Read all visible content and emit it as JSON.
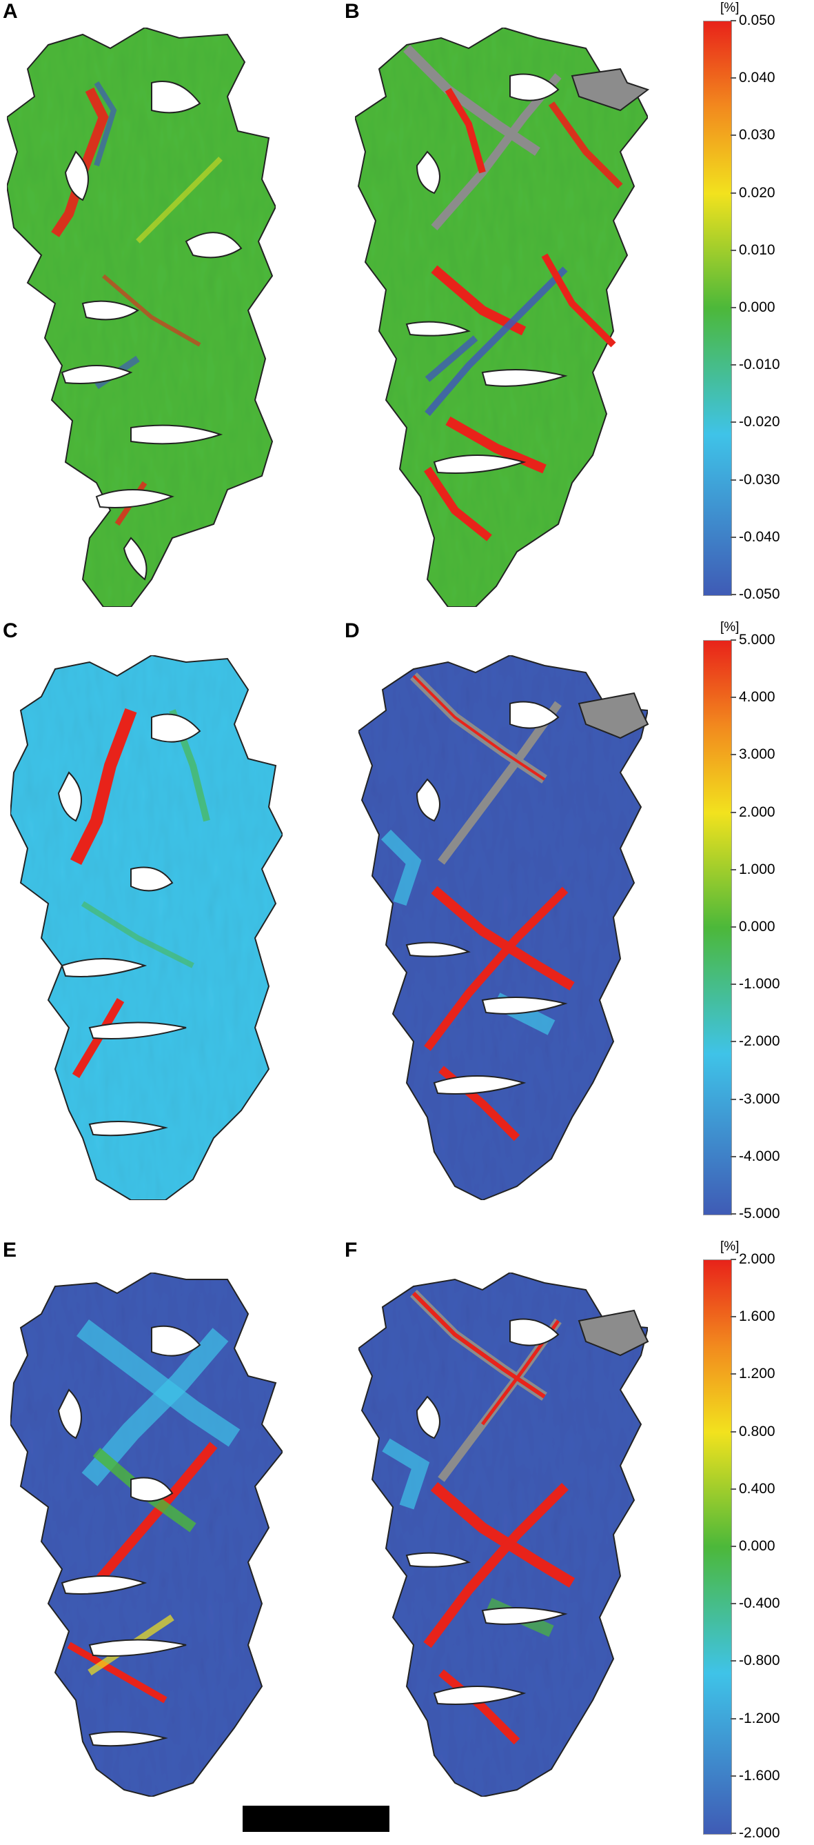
{
  "panels": [
    {
      "letter": "A",
      "field": "green"
    },
    {
      "letter": "B",
      "field": "green",
      "gray_network": true
    },
    {
      "letter": "C",
      "field": "cyan"
    },
    {
      "letter": "D",
      "field": "blue",
      "gray_network": true
    },
    {
      "letter": "E",
      "field": "blue"
    },
    {
      "letter": "F",
      "field": "blue",
      "gray_network": true
    }
  ],
  "colorbars": [
    {
      "unit": "[%]",
      "ticks": [
        "0.050",
        "0.040",
        "0.030",
        "0.020",
        "0.010",
        "0.000",
        "-0.010",
        "-0.020",
        "-0.030",
        "-0.040",
        "-0.050"
      ]
    },
    {
      "unit": "[%]",
      "ticks": [
        "5.000",
        "4.000",
        "3.000",
        "2.000",
        "1.000",
        "0.000",
        "-1.000",
        "-2.000",
        "-3.000",
        "-4.000",
        "-5.000"
      ]
    },
    {
      "unit": "[%]",
      "ticks": [
        "2.000",
        "1.600",
        "1.200",
        "0.800",
        "0.400",
        "0.000",
        "-0.400",
        "-0.800",
        "-1.200",
        "-1.600",
        "-2.000"
      ]
    }
  ],
  "colors": {
    "red": "#e8231a",
    "orange": "#f28a1e",
    "yellow": "#f2e21e",
    "green": "#4cb83a",
    "cyan": "#3fc3e8",
    "blue": "#3f5bb5",
    "gray": "#8c8c8c"
  }
}
